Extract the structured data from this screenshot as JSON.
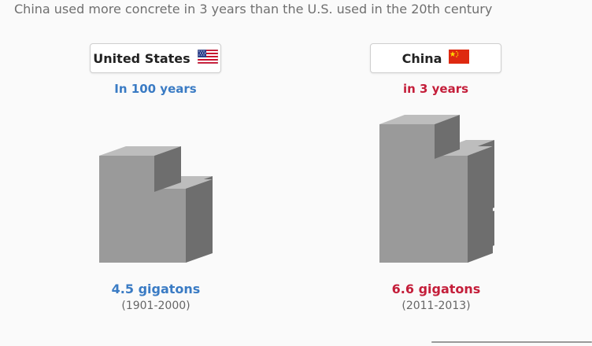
{
  "title": "China used more concrete in 3 years than the U.S. used in the 20th century",
  "panels": [
    {
      "country": "United States",
      "flag_icon": "us-flag-icon",
      "subtitle": "In 100 years",
      "amount": "4.5 gigatons",
      "period": "(1901-2000)",
      "color": "#3a7bc4"
    },
    {
      "country": "China",
      "flag_icon": "china-flag-icon",
      "subtitle": "in 3 years",
      "amount": "6.6 gigatons",
      "period": "(2011-2013)",
      "color": "#c41e3a"
    }
  ],
  "chart_data": {
    "type": "bar",
    "categories": [
      "United States",
      "China"
    ],
    "values": [
      4.5,
      6.6
    ],
    "unit": "gigatons",
    "periods": [
      "1901-2000",
      "2011-2013"
    ],
    "title": "China used more concrete in 3 years than the U.S. used in the 20th century"
  }
}
